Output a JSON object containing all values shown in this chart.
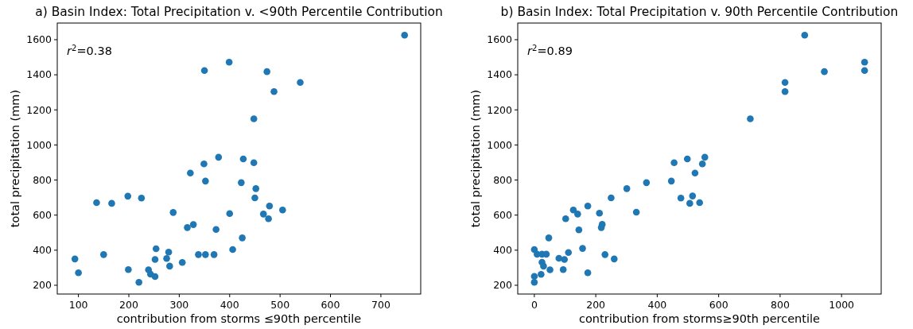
{
  "chart_data": [
    {
      "type": "scatter",
      "title": "a)  Basin Index: Total Precipitation v. <90th Percentile Contribution",
      "xlabel": "contribution from storms  ≤90th percentile",
      "ylabel": "total precipitation (mm)",
      "annotations": [
        "r$^{2}$=0.38"
      ],
      "marker": "circle",
      "grid": false,
      "xlim": [
        58,
        779
      ],
      "xticks": [
        100,
        200,
        300,
        400,
        500,
        600,
        700
      ],
      "ylim": [
        150,
        1695
      ],
      "yticks": [
        200,
        400,
        600,
        800,
        1000,
        1200,
        1400,
        1600
      ],
      "series": [
        {
          "color": "#1f77b4",
          "x": [
            93,
            100,
            136,
            166,
            150,
            198,
            199,
            225,
            220,
            239,
            243,
            252,
            252,
            254,
            275,
            279,
            281,
            288,
            306,
            316,
            328,
            322,
            349,
            352,
            350,
            378,
            373,
            338,
            352,
            369,
            399,
            400,
            406,
            423,
            425,
            427,
            474,
            540,
            488,
            448,
            448,
            452,
            450,
            479,
            467,
            477,
            505,
            747
          ],
          "values": [
            350,
            271,
            671,
            667,
            375,
            708,
            289,
            697,
            217,
            288,
            263,
            250,
            347,
            408,
            353,
            389,
            309,
            615,
            330,
            529,
            546,
            840,
            892,
            794,
            1424,
            930,
            518,
            375,
            375,
            375,
            1472,
            609,
            404,
            785,
            470,
            920,
            1418,
            1356,
            1304,
            1149,
            899,
            751,
            698,
            652,
            606,
            579,
            629,
            1626
          ]
        }
      ]
    },
    {
      "type": "scatter",
      "title": "b)  Basin Index: Total Precipitation v. 90th Percentile Contribution",
      "xlabel": "contribution from storms≥90th percentile",
      "ylabel": "total precipitation (mm)",
      "annotations": [
        "r$^{2}$=0.89"
      ],
      "marker": "circle",
      "grid": false,
      "xlim": [
        -54,
        1129
      ],
      "xticks": [
        0,
        200,
        400,
        600,
        800,
        1000
      ],
      "ylim": [
        150,
        1695
      ],
      "yticks": [
        200,
        400,
        600,
        800,
        1000,
        1200,
        1400,
        1600
      ],
      "series": [
        {
          "color": "#1f77b4",
          "x": [
            0,
            0,
            0,
            9,
            25,
            39,
            22,
            25,
            30,
            51,
            47,
            80,
            98,
            94,
            111,
            102,
            127,
            141,
            145,
            157,
            174,
            174,
            212,
            221,
            218,
            230,
            260,
            250,
            301,
            332,
            365,
            446,
            455,
            498,
            523,
            477,
            515,
            506,
            538,
            555,
            547,
            703,
            816,
            816,
            880,
            944,
            1075,
            1075
          ],
          "values": [
            404,
            251,
            217,
            377,
            377,
            377,
            262,
            331,
            309,
            288,
            470,
            354,
            347,
            289,
            387,
            579,
            629,
            606,
            516,
            410,
            652,
            271,
            611,
            547,
            529,
            375,
            350,
            698,
            751,
            617,
            785,
            794,
            899,
            920,
            840,
            697,
            709,
            667,
            671,
            930,
            892,
            1149,
            1356,
            1304,
            1626,
            1418,
            1472,
            1424
          ]
        }
      ]
    }
  ]
}
